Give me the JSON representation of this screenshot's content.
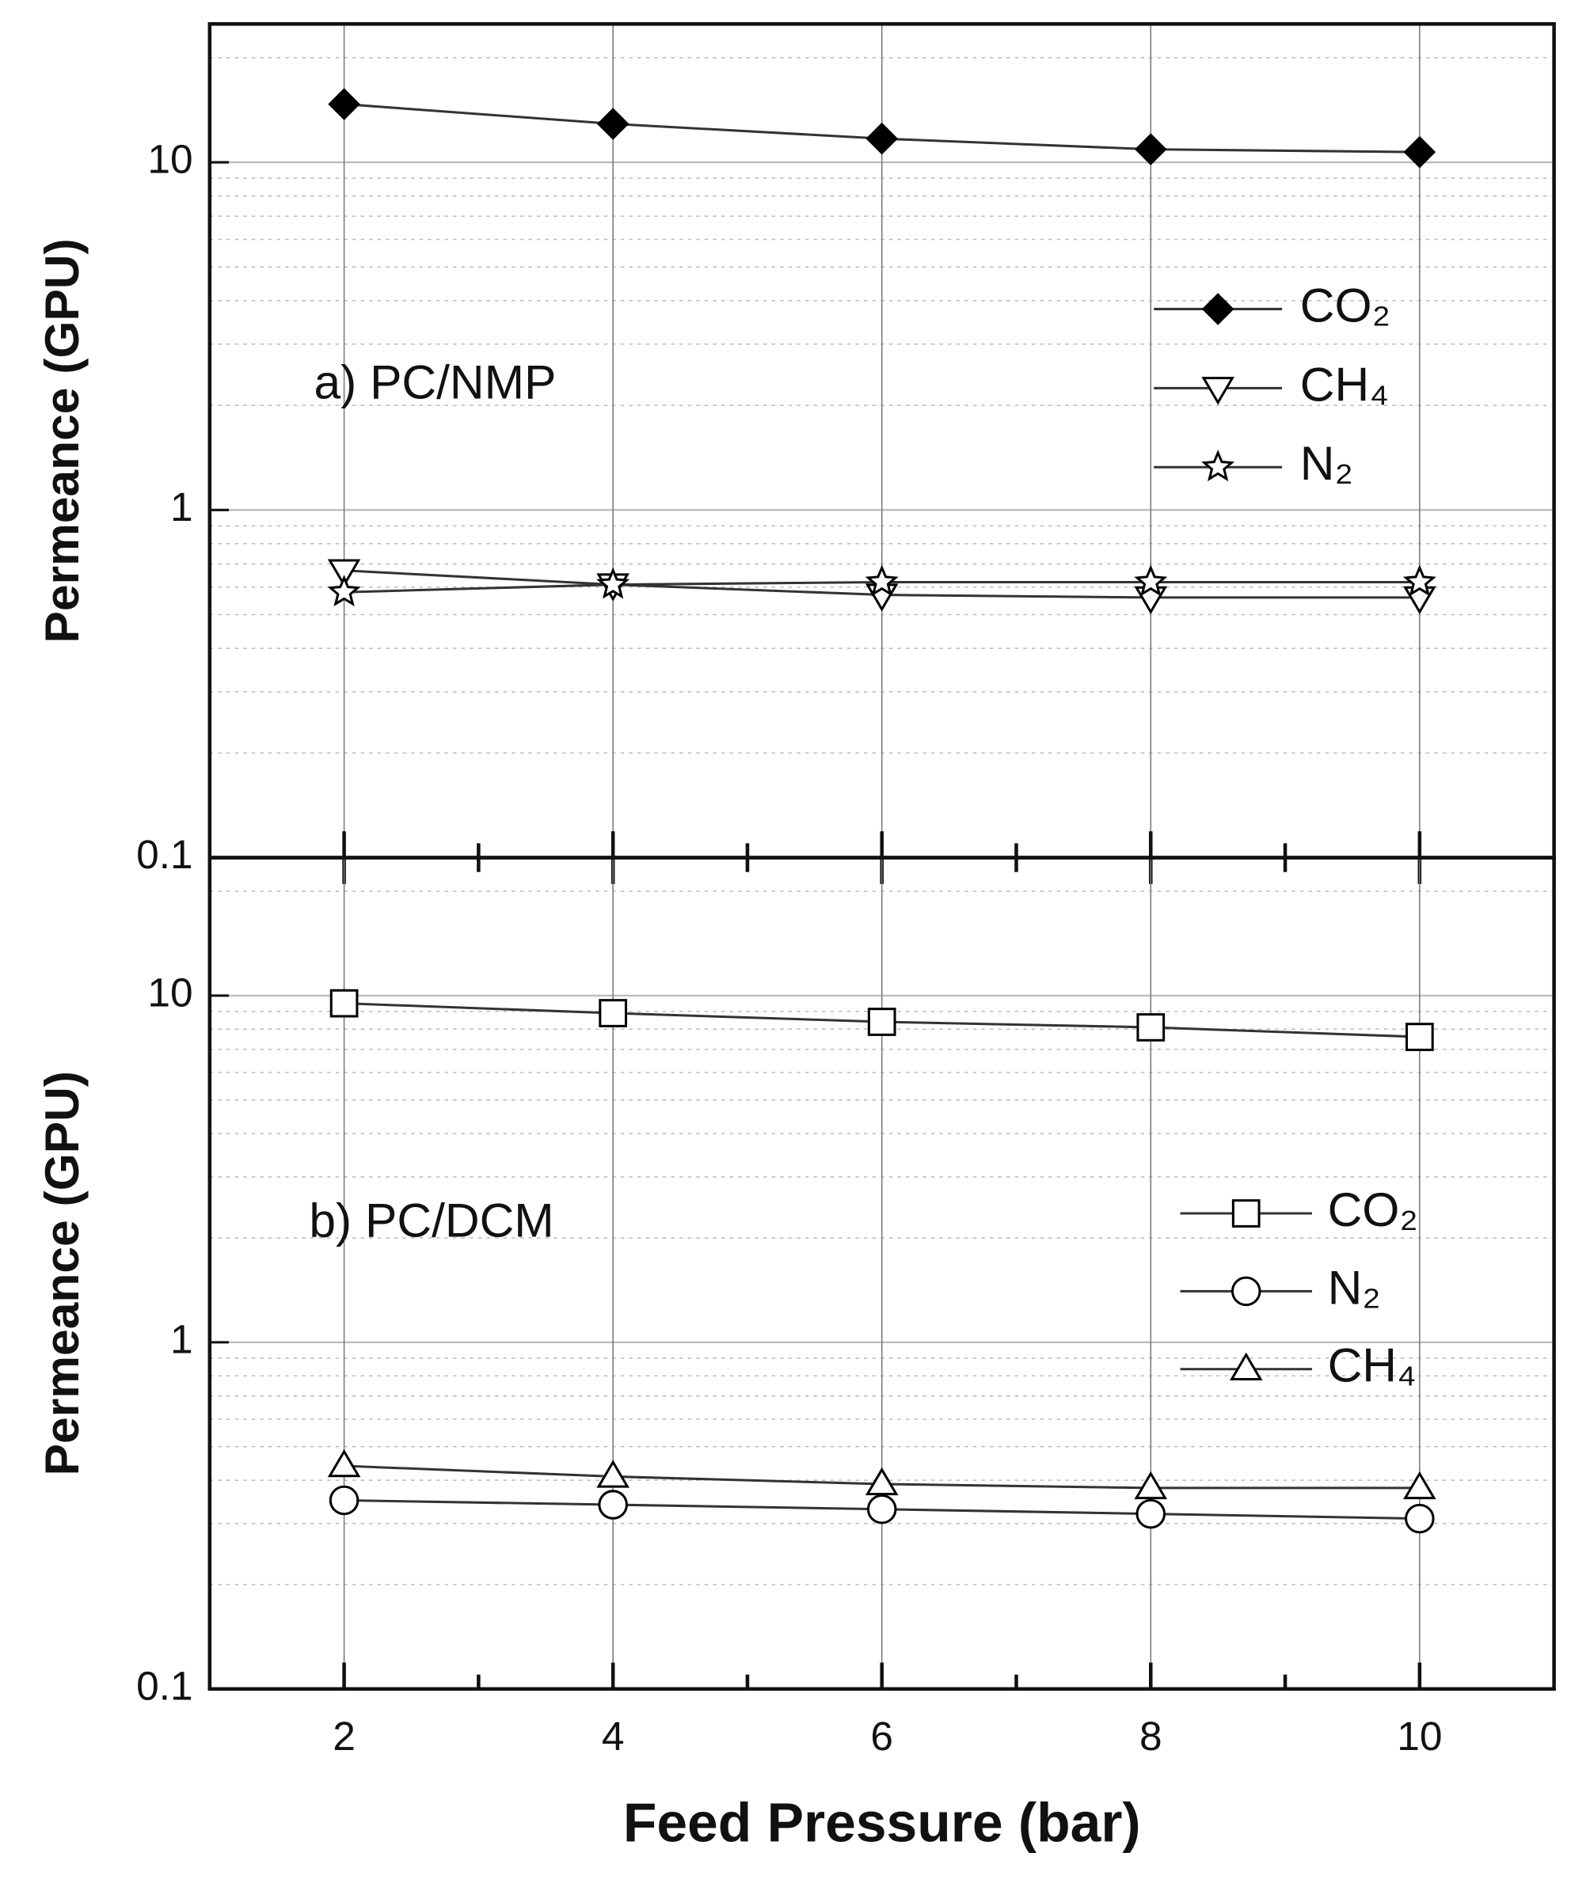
{
  "chart_data": [
    {
      "type": "line",
      "annotation": "a) PC/NMP",
      "y_label": "Permeance (GPU)",
      "log_y": true,
      "grid": true,
      "legend": "upper right",
      "x": [
        2,
        4,
        6,
        8,
        10
      ],
      "xlim": [
        1,
        11
      ],
      "xticks": [
        2,
        4,
        6,
        8,
        10
      ],
      "ylim": [
        0.1,
        25
      ],
      "yticks": [
        0.1,
        1,
        10
      ],
      "series": [
        {
          "name": "CO₂",
          "color": "#000000",
          "marker": "diamond",
          "values": [
            14.7,
            12.9,
            11.7,
            10.9,
            10.7
          ]
        },
        {
          "name": "CH₄",
          "color": "#000000",
          "marker": "triangle-down",
          "values": [
            0.67,
            0.61,
            0.57,
            0.56,
            0.56
          ]
        },
        {
          "name": "N₂",
          "color": "#000000",
          "marker": "star",
          "values": [
            0.58,
            0.61,
            0.62,
            0.62,
            0.62
          ]
        }
      ]
    },
    {
      "type": "line",
      "annotation": "b) PC/DCM",
      "y_label": "Permeance (GPU)",
      "x_label": "Feed Pressure (bar)",
      "log_y": true,
      "grid": true,
      "legend": "center right",
      "x": [
        2,
        4,
        6,
        8,
        10
      ],
      "xlim": [
        1,
        11
      ],
      "xticks": [
        2,
        4,
        6,
        8,
        10
      ],
      "ylim": [
        0.1,
        25
      ],
      "yticks": [
        0.1,
        1,
        10
      ],
      "series": [
        {
          "name": "CO₂",
          "color": "#000000",
          "marker": "square",
          "values": [
            9.5,
            8.9,
            8.4,
            8.1,
            7.6
          ]
        },
        {
          "name": "N₂",
          "color": "#000000",
          "marker": "circle",
          "values": [
            0.35,
            0.34,
            0.33,
            0.32,
            0.31
          ]
        },
        {
          "name": "CH₄",
          "color": "#000000",
          "marker": "triangle-up",
          "values": [
            0.44,
            0.41,
            0.39,
            0.38,
            0.38
          ]
        }
      ]
    }
  ]
}
